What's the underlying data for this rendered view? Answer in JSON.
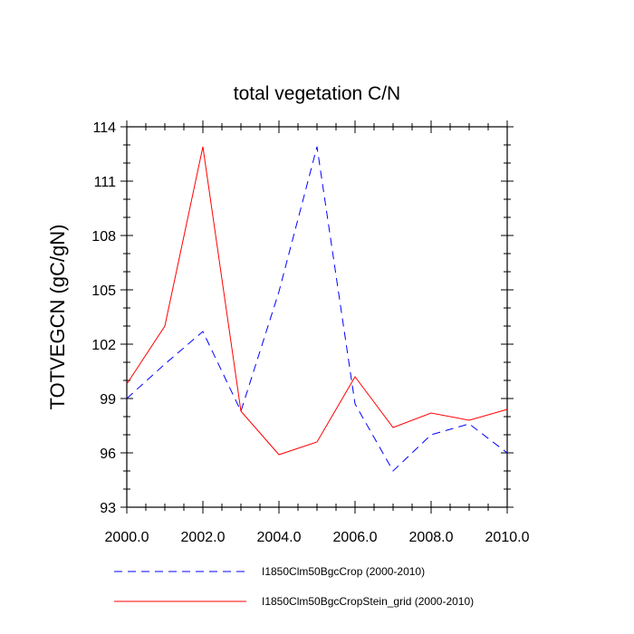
{
  "chart_data": {
    "type": "line",
    "title": "total vegetation C/N",
    "xlabel": "",
    "ylabel": "TOTVEGCN  (gC/gN)",
    "xlim": [
      2000,
      2010
    ],
    "ylim": [
      93,
      114
    ],
    "xticks": [
      "2000.0",
      "2002.0",
      "2004.0",
      "2006.0",
      "2008.0",
      "2010.0"
    ],
    "xtick_values": [
      2000,
      2002,
      2004,
      2006,
      2008,
      2010
    ],
    "yticks": [
      "93",
      "96",
      "99",
      "102",
      "105",
      "108",
      "111",
      "114"
    ],
    "ytick_values": [
      93,
      96,
      99,
      102,
      105,
      108,
      111,
      114
    ],
    "x": [
      2000,
      2001,
      2002,
      2003,
      2004,
      2005,
      2006,
      2007,
      2008,
      2009,
      2010
    ],
    "series": [
      {
        "name": "I1850Clm50BgcCrop (2000-2010)",
        "color": "#0000ff",
        "style": "dashed",
        "values": [
          99.0,
          100.9,
          102.7,
          98.3,
          104.9,
          112.9,
          98.7,
          95.0,
          97.0,
          97.6,
          96.0
        ]
      },
      {
        "name": "I1850Clm50BgcCropStein_grid (2000-2010)",
        "color": "#ff0000",
        "style": "solid",
        "values": [
          99.8,
          103.0,
          112.9,
          98.3,
          95.9,
          96.6,
          100.2,
          97.4,
          98.2,
          97.8,
          98.4
        ]
      }
    ],
    "grid": false,
    "legend_placement": "bottom"
  }
}
